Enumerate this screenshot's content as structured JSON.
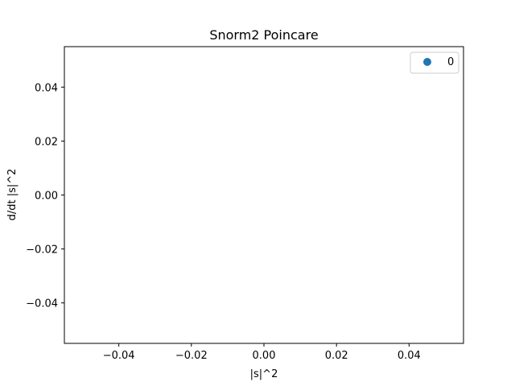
{
  "chart_data": {
    "type": "scatter",
    "title": "Snorm2 Poincare",
    "xlabel": "|s|^2",
    "ylabel": "d/dt |s|^2",
    "xlim": [
      -0.055,
      0.055
    ],
    "ylim": [
      -0.055,
      0.055
    ],
    "x_ticks": [
      -0.04,
      -0.02,
      0.0,
      0.02,
      0.04
    ],
    "x_tick_labels": [
      "−0.04",
      "−0.02",
      "0.00",
      "0.02",
      "0.04"
    ],
    "y_ticks": [
      -0.04,
      -0.02,
      0.0,
      0.02,
      0.04
    ],
    "y_tick_labels": [
      "−0.04",
      "−0.02",
      "0.00",
      "0.02",
      "0.04"
    ],
    "grid": false,
    "legend_position": "top-right",
    "series": [
      {
        "name": "0",
        "color": "#1f77b4",
        "x": [],
        "y": []
      }
    ]
  }
}
